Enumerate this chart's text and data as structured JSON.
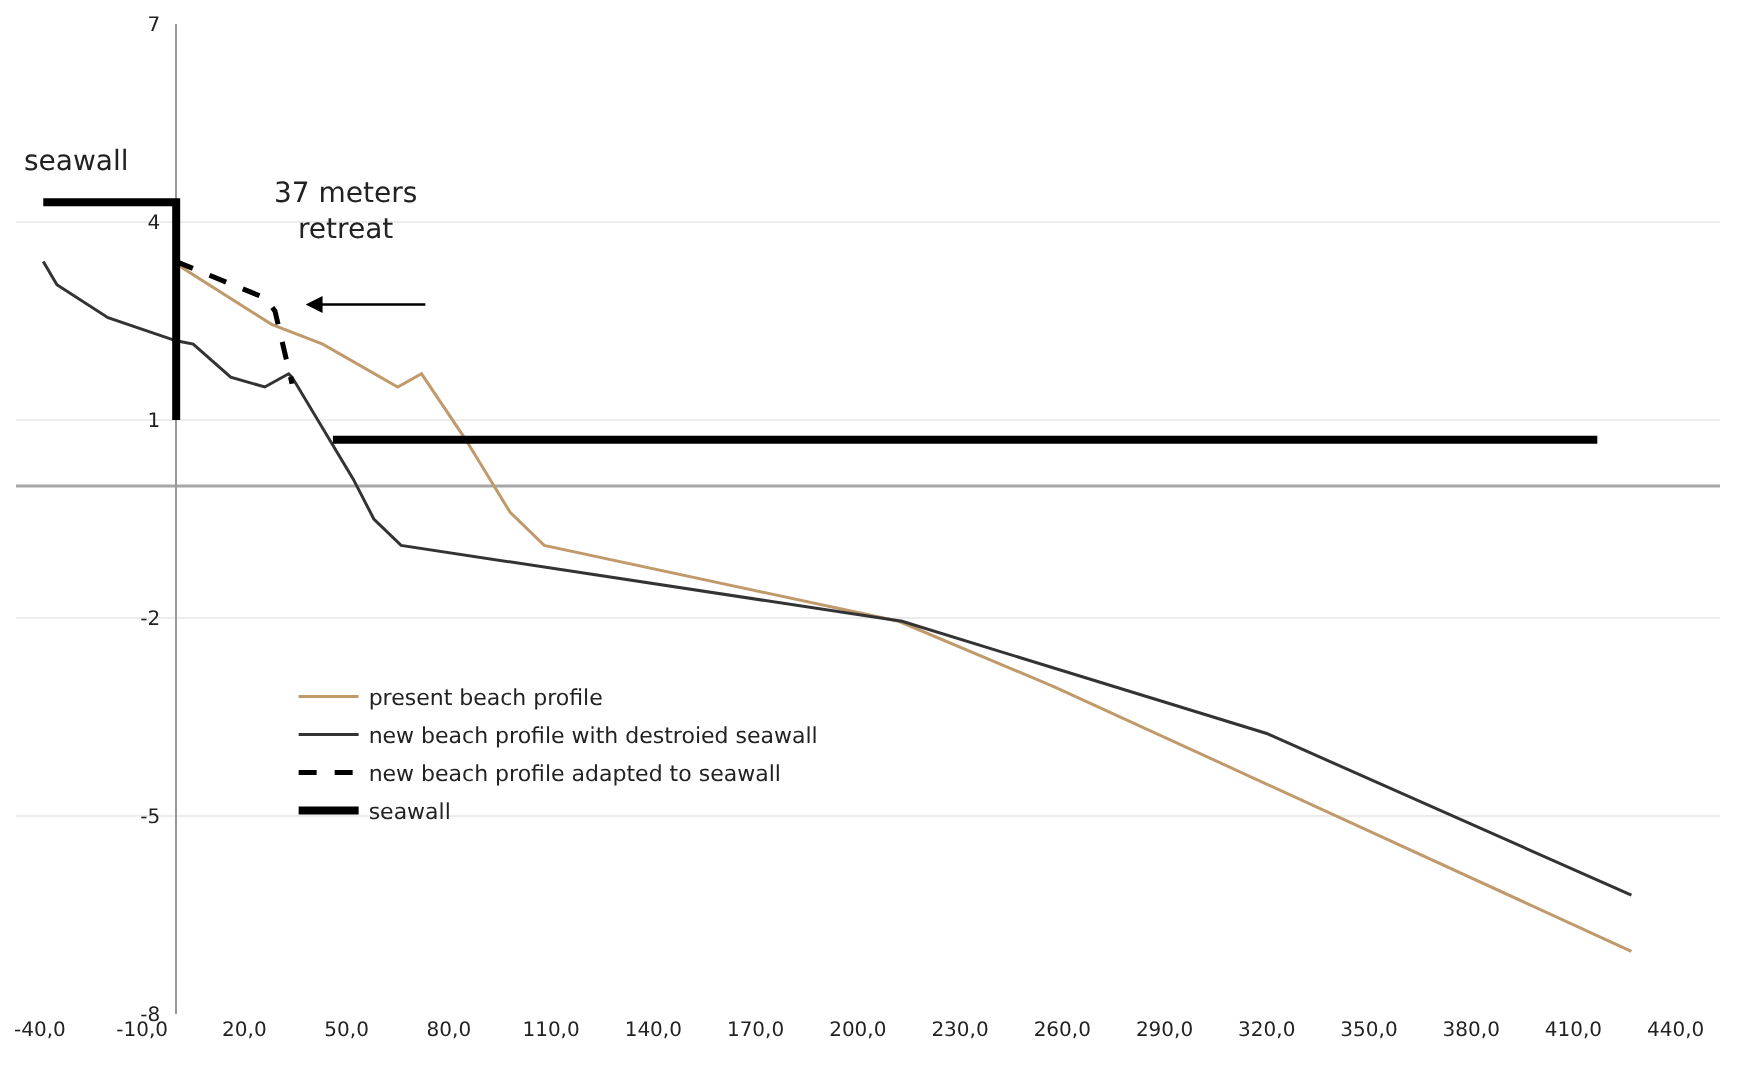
{
  "chart_data": {
    "type": "line",
    "xlim": [
      -47,
      453
    ],
    "ylim": [
      -8,
      7
    ],
    "xticks": [
      {
        "value": -40,
        "label": "-40,0"
      },
      {
        "value": -10,
        "label": "-10,0"
      },
      {
        "value": 20,
        "label": "20,0"
      },
      {
        "value": 50,
        "label": "50,0"
      },
      {
        "value": 80,
        "label": "80,0"
      },
      {
        "value": 110,
        "label": "110,0"
      },
      {
        "value": 140,
        "label": "140,0"
      },
      {
        "value": 170,
        "label": "170,0"
      },
      {
        "value": 200,
        "label": "200,0"
      },
      {
        "value": 230,
        "label": "230,0"
      },
      {
        "value": 260,
        "label": "260,0"
      },
      {
        "value": 290,
        "label": "290,0"
      },
      {
        "value": 320,
        "label": "320,0"
      },
      {
        "value": 350,
        "label": "350,0"
      },
      {
        "value": 380,
        "label": "380,0"
      },
      {
        "value": 410,
        "label": "410,0"
      },
      {
        "value": 440,
        "label": "440,0"
      }
    ],
    "yticks": [
      7,
      4,
      1,
      -2,
      -5,
      -8
    ],
    "grid": "y",
    "legend": "bottom left",
    "marker": "none",
    "ref_lines": [
      {
        "axis": "y",
        "value": 0,
        "color": "#a6a6a6"
      }
    ],
    "annotations": [
      "seawall",
      "37 meters\nretreat"
    ],
    "series": [
      {
        "name": "present beach profile",
        "color": "#c09a6b",
        "line_style": "solid",
        "x": [
          0,
          2,
          28,
          43,
          65,
          72,
          85,
          98,
          108,
          212,
          258,
          427
        ],
        "values": [
          3.4,
          3.3,
          2.45,
          2.15,
          1.5,
          1.7,
          0.7,
          -0.4,
          -0.9,
          -2.05,
          -3.05,
          -7.05
        ]
      },
      {
        "name": "new beach profile with destroied seawall",
        "color": "#333333",
        "line_style": "solid",
        "x": [
          -39,
          -35,
          -20,
          0,
          5,
          16,
          26,
          33,
          34,
          52,
          58,
          66,
          213,
          320,
          427
        ],
        "values": [
          3.4,
          3.05,
          2.55,
          2.2,
          2.15,
          1.65,
          1.5,
          1.7,
          1.65,
          0.1,
          -0.5,
          -0.9,
          -2.05,
          -3.75,
          -6.2
        ]
      },
      {
        "name": "new beach profile adapted to seawall",
        "color": "#000000",
        "line_style": "dashed",
        "x": [
          0,
          26,
          29,
          34
        ],
        "values": [
          3.4,
          2.85,
          2.65,
          1.55
        ]
      },
      {
        "name": "seawall",
        "color": "#000000",
        "line_style": "solid",
        "x": [
          -39,
          0,
          0,
          null,
          46,
          417
        ],
        "values": [
          4.3,
          4.3,
          1,
          null,
          0.7,
          0.7
        ]
      }
    ]
  }
}
